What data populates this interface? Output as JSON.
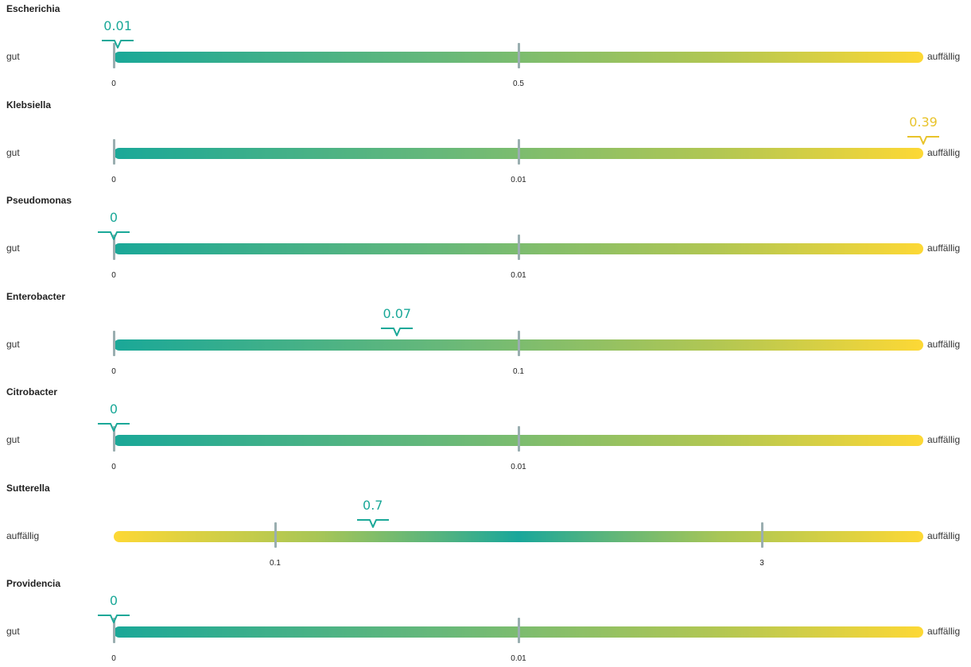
{
  "chart_data": [
    {
      "type": "range-gauge",
      "name": "Escherichia",
      "left_label": "gut",
      "right_label": "auffällig",
      "gradient": "normal",
      "ticks": [
        "0",
        "0.5"
      ],
      "value_label": "0.01",
      "value_position": 0.005,
      "value_color": "#1aa898"
    },
    {
      "type": "range-gauge",
      "name": "Klebsiella",
      "left_label": "gut",
      "right_label": "auffällig",
      "gradient": "normal",
      "ticks": [
        "0",
        "0.01"
      ],
      "value_label": "0.39",
      "value_position": 1.0,
      "value_color": "#e8c32a"
    },
    {
      "type": "range-gauge",
      "name": "Pseudomonas",
      "left_label": "gut",
      "right_label": "auffällig",
      "gradient": "normal",
      "ticks": [
        "0",
        "0.01"
      ],
      "value_label": "0",
      "value_position": 0.0,
      "value_color": "#1aa898"
    },
    {
      "type": "range-gauge",
      "name": "Enterobacter",
      "left_label": "gut",
      "right_label": "auffällig",
      "gradient": "normal",
      "ticks": [
        "0",
        "0.1"
      ],
      "value_label": "0.07",
      "value_position": 0.35,
      "value_color": "#1aa898"
    },
    {
      "type": "range-gauge",
      "name": "Citrobacter",
      "left_label": "gut",
      "right_label": "auffällig",
      "gradient": "normal",
      "ticks": [
        "0",
        "0.01"
      ],
      "value_label": "0",
      "value_position": 0.0,
      "value_color": "#1aa898"
    },
    {
      "type": "range-gauge",
      "name": "Sutterella",
      "left_label": "auffällig",
      "right_label": "auffällig",
      "gradient": "u-shape",
      "ticks": [
        "0.1",
        "3"
      ],
      "value_label": "0.7",
      "value_position": 0.32,
      "value_color": "#1aa898"
    },
    {
      "type": "range-gauge",
      "name": "Providencia",
      "left_label": "gut",
      "right_label": "auffällig",
      "gradient": "normal",
      "ticks": [
        "0",
        "0.01"
      ],
      "value_label": "0",
      "value_position": 0.0,
      "value_color": "#1aa898"
    }
  ]
}
